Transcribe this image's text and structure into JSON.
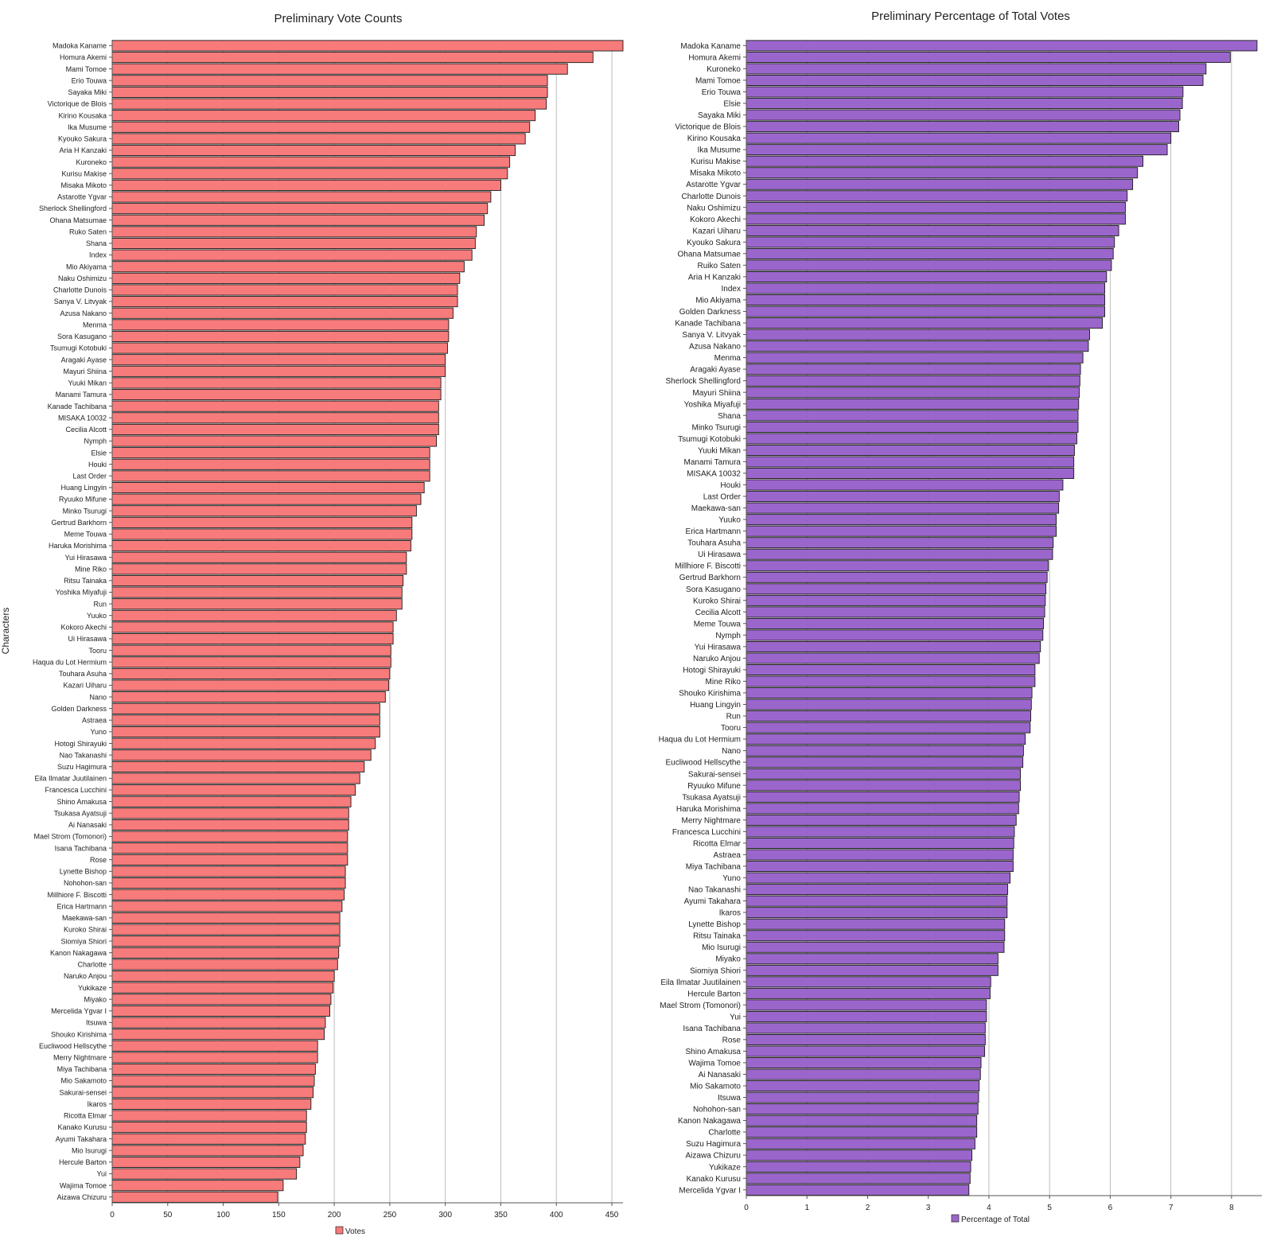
{
  "chart_data": [
    {
      "type": "bar",
      "orientation": "horizontal",
      "title": "Preliminary Vote Counts",
      "ylabel": "Characters",
      "xlabel": "",
      "legend": {
        "label": "Votes",
        "position": "bottom"
      },
      "color": "#f77b7b",
      "grid": true,
      "xlim": [
        0,
        460
      ],
      "xticks": [
        0,
        50,
        100,
        150,
        200,
        250,
        300,
        350,
        400,
        450
      ],
      "categories": [
        "Madoka Kaname",
        "Homura Akemi",
        "Mami Tomoe",
        "Erio Touwa",
        "Sayaka Miki",
        "Victorique de Blois",
        "Kirino Kousaka",
        "Ika Musume",
        "Kyouko Sakura",
        "Aria H Kanzaki",
        "Kuroneko",
        "Kurisu Makise",
        "Misaka Mikoto",
        "Astarotte Ygvar",
        "Sherlock Shellingford",
        "Ohana Matsumae",
        "Ruko Saten",
        "Shana",
        "Index",
        "Mio Akiyama",
        "Naku Oshimizu",
        "Charlotte Dunois",
        "Sanya V. Litvyak",
        "Azusa Nakano",
        "Menma",
        "Sora Kasugano",
        "Tsumugi Kotobuki",
        "Aragaki Ayase",
        "Mayuri Shiina",
        "Yuuki Mikan",
        "Manami Tamura",
        "Kanade Tachibana",
        "MISAKA 10032",
        "Cecilia Alcott",
        "Nymph",
        "Elsie",
        "Houki",
        "Last Order",
        "Huang Lingyin",
        "Ryuuko Mifune",
        "Minko Tsurugi",
        "Gertrud Barkhorn",
        "Meme Touwa",
        "Haruka Morishima",
        "Yui Hirasawa",
        "Mine Riko",
        "Ritsu Tainaka",
        "Yoshika Miyafuji",
        "Run",
        "Yuuko",
        "Kokoro Akechi",
        "Ui Hirasawa",
        "Tooru",
        "Haqua du Lot Hermium",
        "Touhara Asuha",
        "Kazari Uiharu",
        "Nano",
        "Golden Darkness",
        "Astraea",
        "Yuno",
        "Hotogi Shirayuki",
        "Nao Takanashi",
        "Suzu Hagimura",
        "Eila Ilmatar Juutilainen",
        "Francesca Lucchini",
        "Shino Amakusa",
        "Tsukasa Ayatsuji",
        "Ai Nanasaki",
        "Mael Strom (Tomonori)",
        "Isana Tachibana",
        "Rose",
        "Lynette Bishop",
        "Nohohon-san",
        "Millhiore F. Biscotti",
        "Erica Hartmann",
        "Maekawa-san",
        "Kuroko Shirai",
        "Siomiya Shiori",
        "Kanon Nakagawa",
        "Charlotte",
        "Naruko Anjou",
        "Yukikaze",
        "Miyako",
        "Mercelida Ygvar I",
        "Itsuwa",
        "Shouko Kirishima",
        "Eucliwood Hellscythe",
        "Merry Nightmare",
        "Miya Tachibana",
        "Mio Sakamoto",
        "Sakurai-sensei",
        "Ikaros",
        "Ricotta Elmar",
        "Kanako Kurusu",
        "Ayumi Takahara",
        "Mio Isurugi",
        "Hercule Barton",
        "Yui",
        "Wajima Tomoe",
        "Aizawa Chizuru"
      ],
      "values": [
        460,
        433,
        410,
        392,
        392,
        391,
        381,
        376,
        372,
        363,
        358,
        356,
        350,
        341,
        338,
        335,
        328,
        327,
        324,
        317,
        313,
        311,
        311,
        307,
        303,
        303,
        302,
        300,
        300,
        296,
        296,
        294,
        294,
        294,
        292,
        286,
        286,
        286,
        281,
        278,
        274,
        270,
        270,
        269,
        265,
        265,
        262,
        261,
        261,
        256,
        253,
        253,
        251,
        251,
        250,
        249,
        246,
        241,
        241,
        241,
        237,
        233,
        227,
        223,
        219,
        215,
        213,
        213,
        212,
        212,
        212,
        210,
        210,
        209,
        207,
        205,
        205,
        205,
        204,
        203,
        200,
        199,
        197,
        196,
        192,
        191,
        185,
        185,
        183,
        182,
        181,
        179,
        175,
        175,
        174,
        172,
        169,
        166,
        154,
        149
      ]
    },
    {
      "type": "bar",
      "orientation": "horizontal",
      "title": "Preliminary Percentage of Total Votes",
      "xlabel": "",
      "ylabel": "",
      "legend": {
        "label": "Percentage of Total",
        "position": "bottom"
      },
      "color": "#9b66cc",
      "grid": true,
      "xlim": [
        0,
        8.5
      ],
      "xticks": [
        0,
        1,
        2,
        3,
        4,
        5,
        6,
        7,
        8
      ],
      "categories": [
        "Madoka Kaname",
        "Homura Akemi",
        "Kuroneko",
        "Mami Tomoe",
        "Erio Touwa",
        "Elsie",
        "Sayaka Miki",
        "Victorique de Blois",
        "Kirino Kousaka",
        "Ika Musume",
        "Kurisu Makise",
        "Misaka Mikoto",
        "Astarotte Ygvar",
        "Charlotte Dunois",
        "Naku Oshimizu",
        "Kokoro Akechi",
        "Kazari Uiharu",
        "Kyouko Sakura",
        "Ohana Matsumae",
        "Ruiko Saten",
        "Aria H Kanzaki",
        "Index",
        "Mio Akiyama",
        "Golden Darkness",
        "Kanade Tachibana",
        "Sanya V. Litvyak",
        "Azusa Nakano",
        "Menma",
        "Aragaki Ayase",
        "Sherlock Shellingford",
        "Mayuri Shiina",
        "Yoshika Miyafuji",
        "Shana",
        "Minko Tsurugi",
        "Tsumugi Kotobuki",
        "Yuuki Mikan",
        "Manami Tamura",
        "MISAKA 10032",
        "Houki",
        "Last Order",
        "Maekawa-san",
        "Yuuko",
        "Erica Hartmann",
        "Touhara Asuha",
        "Ui Hirasawa",
        "Millhiore F. Biscotti",
        "Gertrud Barkhorn",
        "Sora Kasugano",
        "Kuroko Shirai",
        "Cecilia Alcott",
        "Meme Touwa",
        "Nymph",
        "Yui Hirasawa",
        "Naruko Anjou",
        "Hotogi Shirayuki",
        "Mine Riko",
        "Shouko Kirishima",
        "Huang Lingyin",
        "Run",
        "Tooru",
        "Haqua du Lot Hermium",
        "Nano",
        "Eucliwood Hellscythe",
        "Sakurai-sensei",
        "Ryuuko Mifune",
        "Tsukasa Ayatsuji",
        "Haruka Morishima",
        "Merry Nightmare",
        "Francesca Lucchini",
        "Ricotta Elmar",
        "Astraea",
        "Miya Tachibana",
        "Yuno",
        "Nao Takanashi",
        "Ayumi Takahara",
        "Ikaros",
        "Lynette Bishop",
        "Ritsu Tainaka",
        "Mio Isurugi",
        "Miyako",
        "Siomiya Shiori",
        "Eila Ilmatar Juutilainen",
        "Hercule Barton",
        "Mael Strom (Tomonori)",
        "Yui",
        "Isana Tachibana",
        "Rose",
        "Shino Amakusa",
        "Wajima Tomoe",
        "Ai Nanasaki",
        "Mio Sakamoto",
        "Itsuwa",
        "Nohohon-san",
        "Kanon Nakagawa",
        "Charlotte",
        "Suzu Hagimura",
        "Aizawa Chizuru",
        "Yukikaze",
        "Kanako Kurusu",
        "Mercelida Ygvar I"
      ],
      "values": [
        8.42,
        7.98,
        7.58,
        7.53,
        7.2,
        7.19,
        7.15,
        7.13,
        7.0,
        6.94,
        6.54,
        6.45,
        6.37,
        6.28,
        6.25,
        6.25,
        6.14,
        6.07,
        6.05,
        6.02,
        5.94,
        5.91,
        5.91,
        5.91,
        5.87,
        5.66,
        5.64,
        5.55,
        5.51,
        5.5,
        5.49,
        5.48,
        5.47,
        5.47,
        5.45,
        5.41,
        5.4,
        5.4,
        5.22,
        5.16,
        5.15,
        5.11,
        5.11,
        5.06,
        5.05,
        4.98,
        4.96,
        4.94,
        4.93,
        4.92,
        4.9,
        4.89,
        4.85,
        4.83,
        4.76,
        4.76,
        4.71,
        4.7,
        4.69,
        4.68,
        4.6,
        4.57,
        4.56,
        4.52,
        4.52,
        4.5,
        4.49,
        4.45,
        4.42,
        4.41,
        4.4,
        4.4,
        4.35,
        4.31,
        4.3,
        4.3,
        4.26,
        4.26,
        4.25,
        4.15,
        4.15,
        4.03,
        4.02,
        3.96,
        3.96,
        3.94,
        3.94,
        3.93,
        3.87,
        3.86,
        3.84,
        3.83,
        3.82,
        3.8,
        3.8,
        3.77,
        3.72,
        3.7,
        3.69,
        3.67
      ]
    }
  ]
}
